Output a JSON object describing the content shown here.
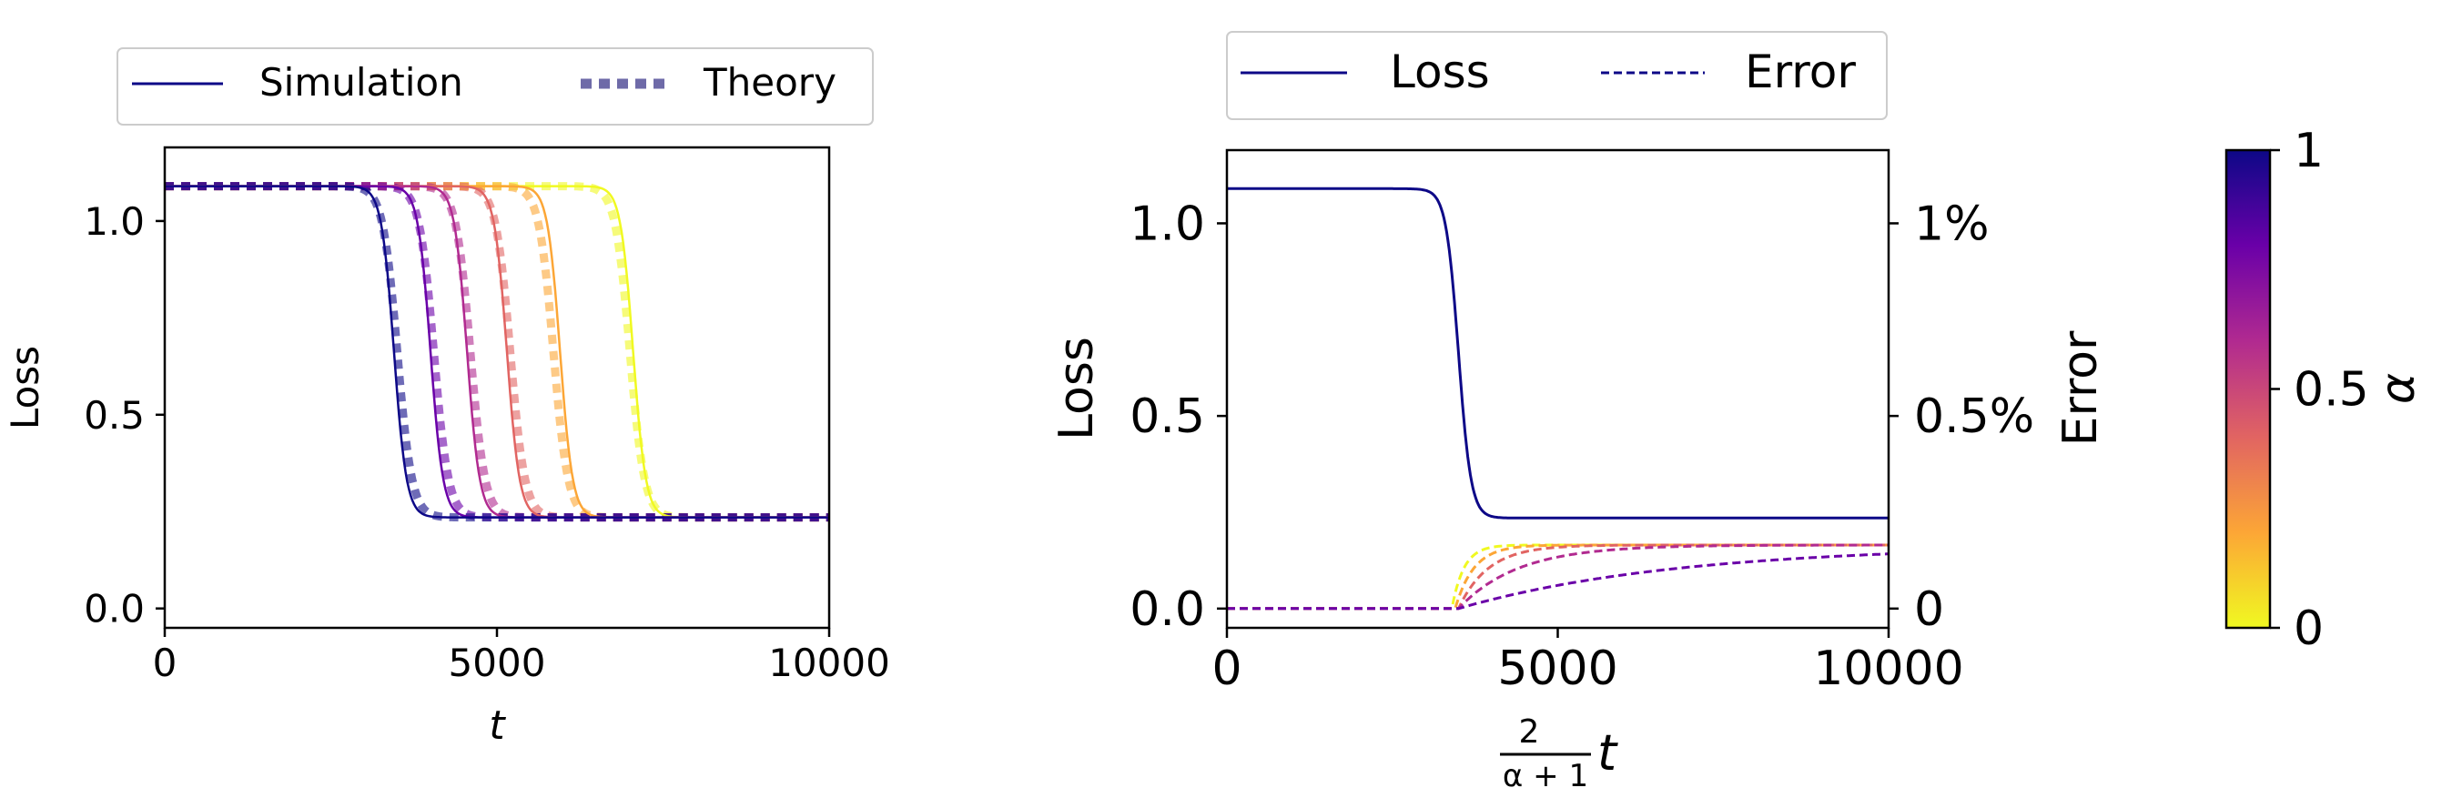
{
  "chart_data": [
    {
      "type": "line",
      "xlabel": "t",
      "ylabel": "Loss",
      "xlim": [
        0,
        10000
      ],
      "ylim": [
        -0.05,
        1.19
      ],
      "xticks": [
        0,
        5000,
        10000
      ],
      "yticks": [
        0.0,
        0.5,
        1.0
      ],
      "xtick_labels": [
        "0",
        "5000",
        "10000"
      ],
      "ytick_labels": [
        "0.0",
        "0.5",
        "1.0"
      ],
      "legend": {
        "position": "top-center, above axes",
        "entries": [
          {
            "label": "Simulation",
            "style": "solid"
          },
          {
            "label": "Theory",
            "style": "dotted"
          }
        ]
      },
      "curve_model": {
        "initial_loss": 1.09,
        "final_loss": 0.235
      },
      "series": [
        {
          "alpha": 1.0,
          "color": "#0d0887",
          "transition_t_simulation": 3450,
          "transition_t_theory": 3500
        },
        {
          "alpha": 0.8,
          "color": "#6a00a8",
          "transition_t_simulation": 4000,
          "transition_t_theory": 4050
        },
        {
          "alpha": 0.6,
          "color": "#b12a90",
          "transition_t_simulation": 4550,
          "transition_t_theory": 4600
        },
        {
          "alpha": 0.4,
          "color": "#e16462",
          "transition_t_simulation": 5150,
          "transition_t_theory": 5200
        },
        {
          "alpha": 0.2,
          "color": "#fca636",
          "transition_t_simulation": 5950,
          "transition_t_theory": 5850
        },
        {
          "alpha": 0.0,
          "color": "#f0f921",
          "transition_t_simulation": 7050,
          "transition_t_theory": 7000
        }
      ]
    },
    {
      "type": "line",
      "xlabel": "2/(α+1) t",
      "xlabel_fraction": {
        "numerator": "2",
        "denominator": "α + 1",
        "variable": "t"
      },
      "ylabel": "Loss",
      "ylabel_right": "Error",
      "xlim": [
        0,
        10000
      ],
      "ylim": [
        -0.05,
        1.19
      ],
      "xticks": [
        0,
        5000,
        10000
      ],
      "yticks": [
        0.0,
        0.5,
        1.0
      ],
      "xtick_labels": [
        "0",
        "5000",
        "10000"
      ],
      "ytick_labels": [
        "0.0",
        "0.5",
        "1.0"
      ],
      "right_ylim": [
        -0.05,
        1.19
      ],
      "right_yticks": [
        0,
        0.5,
        1
      ],
      "right_ytick_labels": [
        "0",
        "0.5%",
        "1%"
      ],
      "legend": {
        "position": "top-center, above axes",
        "entries": [
          {
            "label": "Loss",
            "style": "solid"
          },
          {
            "label": "Error",
            "style": "dashed"
          }
        ]
      },
      "loss_series": {
        "color": "#0d0887",
        "initial_loss": 1.09,
        "final_loss": 0.235,
        "transition_x": 3500
      },
      "error_series": [
        {
          "alpha": 0.8,
          "color": "#6a00a8",
          "onset": 3500,
          "plateau_percent": 0.165,
          "timescale": 3300
        },
        {
          "alpha": 0.6,
          "color": "#b12a90",
          "onset": 3500,
          "plateau_percent": 0.165,
          "timescale": 900
        },
        {
          "alpha": 0.4,
          "color": "#e16462",
          "onset": 3500,
          "plateau_percent": 0.165,
          "timescale": 450
        },
        {
          "alpha": 0.2,
          "color": "#fca636",
          "onset": 3450,
          "plateau_percent": 0.165,
          "timescale": 280
        },
        {
          "alpha": 0.0,
          "color": "#f0f921",
          "onset": 3400,
          "plateau_percent": 0.165,
          "timescale": 180
        }
      ]
    },
    {
      "type": "colorbar",
      "label": "α",
      "range": [
        0,
        1
      ],
      "ticks": [
        0,
        0.5,
        1
      ],
      "tick_labels": [
        "0",
        "0.5",
        "1"
      ],
      "colormap_stops": [
        "#f0f921",
        "#fca636",
        "#e16462",
        "#b12a90",
        "#6a00a8",
        "#0d0887"
      ]
    }
  ]
}
